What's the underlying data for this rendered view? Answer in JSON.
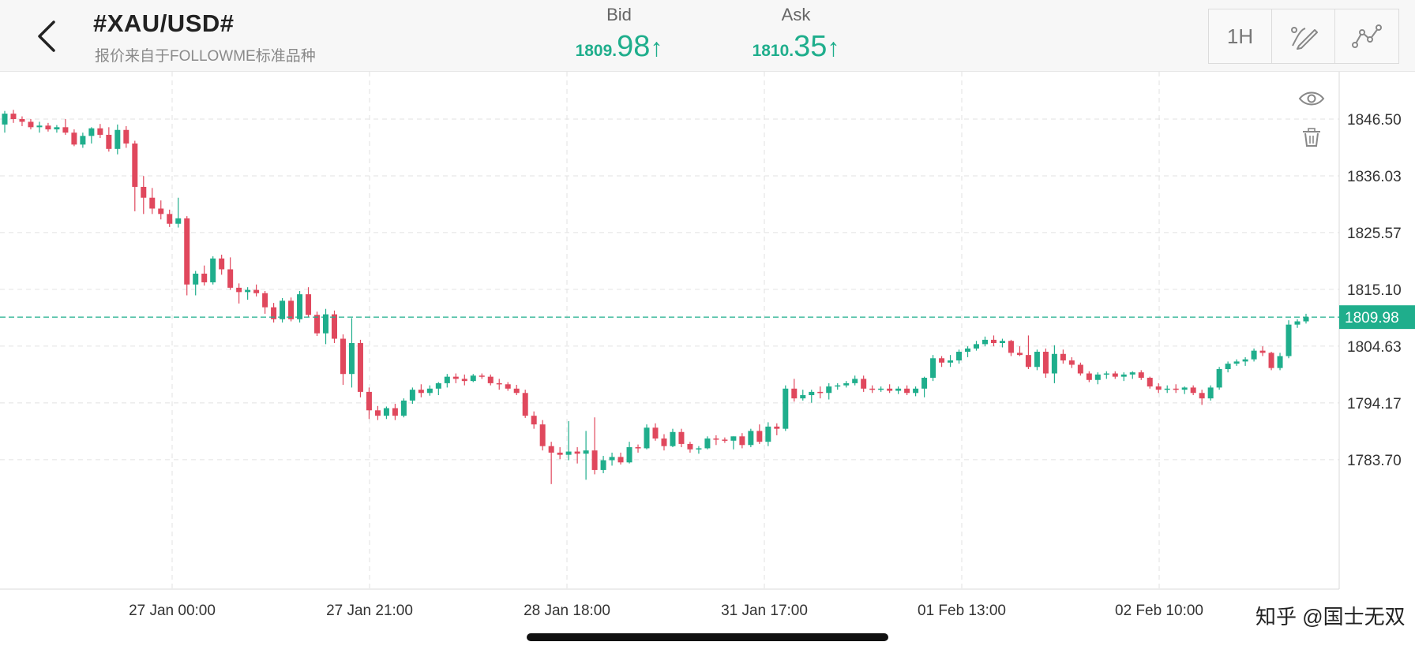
{
  "header": {
    "title": "#XAU/USD#",
    "subtitle": "报价来自于FOLLOWME标准品种",
    "bid": {
      "label": "Bid",
      "big": "1809.",
      "small": "98",
      "arrow": "↑"
    },
    "ask": {
      "label": "Ask",
      "big": "1810.",
      "small": "35",
      "arrow": "↑"
    },
    "tools": {
      "timeframe": "1H",
      "draw_icon": "pen-icon",
      "indicator_icon": "line-chart-icon"
    },
    "back_icon": "chevron-left-icon"
  },
  "watermark": "知乎 @国士无双",
  "colors": {
    "up": "#1fae8c",
    "down": "#e0485d",
    "grid": "#e2e2e2",
    "price_line": "#1fae8c",
    "axis_text": "#333333"
  },
  "chart_data": {
    "type": "candlestick",
    "symbol": "#XAU/USD#",
    "timeframe": "1H",
    "y_ticks": [
      1846.5,
      1836.03,
      1825.57,
      1815.1,
      1804.63,
      1794.17,
      1783.7
    ],
    "x_ticks": [
      "27 Jan 00:00",
      "27 Jan 21:00",
      "28 Jan 18:00",
      "31 Jan 17:00",
      "01 Feb 13:00",
      "02 Feb 10:00"
    ],
    "current_price": "1809.98",
    "grid": true,
    "candles": [
      [
        1845.5,
        1848.0,
        1844.0,
        1847.5
      ],
      [
        1847.5,
        1848.2,
        1845.8,
        1846.5
      ],
      [
        1846.5,
        1847.0,
        1845.2,
        1846.0
      ],
      [
        1846.0,
        1846.5,
        1844.6,
        1845.0
      ],
      [
        1845.0,
        1846.0,
        1844.0,
        1845.3
      ],
      [
        1845.3,
        1845.8,
        1844.2,
        1844.6
      ],
      [
        1844.6,
        1845.4,
        1844.0,
        1845.0
      ],
      [
        1845.0,
        1846.5,
        1843.6,
        1844.0
      ],
      [
        1844.0,
        1844.6,
        1841.5,
        1841.8
      ],
      [
        1841.8,
        1844.0,
        1841.2,
        1843.4
      ],
      [
        1843.4,
        1845.0,
        1842.0,
        1844.8
      ],
      [
        1844.8,
        1845.6,
        1843.0,
        1843.6
      ],
      [
        1843.6,
        1845.0,
        1840.5,
        1841.0
      ],
      [
        1841.0,
        1845.5,
        1840.0,
        1844.5
      ],
      [
        1844.5,
        1845.2,
        1841.2,
        1842.0
      ],
      [
        1842.0,
        1842.5,
        1829.5,
        1834.0
      ],
      [
        1834.0,
        1836.0,
        1829.0,
        1832.0
      ],
      [
        1832.0,
        1833.8,
        1829.0,
        1830.0
      ],
      [
        1830.0,
        1831.5,
        1828.0,
        1829.0
      ],
      [
        1829.0,
        1829.8,
        1826.6,
        1827.2
      ],
      [
        1827.2,
        1832.0,
        1826.5,
        1828.2
      ],
      [
        1828.2,
        1828.6,
        1814.0,
        1816.0
      ],
      [
        1816.0,
        1818.5,
        1814.0,
        1818.0
      ],
      [
        1818.0,
        1819.5,
        1815.8,
        1816.4
      ],
      [
        1816.4,
        1821.2,
        1816.0,
        1820.8
      ],
      [
        1820.8,
        1821.5,
        1817.8,
        1818.8
      ],
      [
        1818.8,
        1821.0,
        1815.0,
        1815.4
      ],
      [
        1815.4,
        1816.2,
        1812.5,
        1814.6
      ],
      [
        1814.6,
        1815.5,
        1813.2,
        1815.0
      ],
      [
        1815.0,
        1816.0,
        1813.8,
        1814.4
      ],
      [
        1814.4,
        1814.8,
        1810.6,
        1811.8
      ],
      [
        1811.8,
        1812.6,
        1809.0,
        1809.6
      ],
      [
        1809.6,
        1813.5,
        1809.0,
        1813.0
      ],
      [
        1813.0,
        1813.6,
        1809.2,
        1809.6
      ],
      [
        1809.6,
        1814.8,
        1809.0,
        1814.2
      ],
      [
        1814.2,
        1815.5,
        1810.0,
        1810.4
      ],
      [
        1810.4,
        1811.0,
        1806.5,
        1807.0
      ],
      [
        1807.0,
        1811.5,
        1805.0,
        1810.5
      ],
      [
        1810.5,
        1811.2,
        1805.2,
        1806.0
      ],
      [
        1806.0,
        1806.8,
        1797.5,
        1799.5
      ],
      [
        1799.5,
        1809.8,
        1797.0,
        1805.2
      ],
      [
        1805.2,
        1805.8,
        1795.2,
        1796.2
      ],
      [
        1796.2,
        1797.0,
        1791.2,
        1792.8
      ],
      [
        1792.8,
        1793.6,
        1791.0,
        1791.8
      ],
      [
        1791.8,
        1793.5,
        1791.2,
        1793.2
      ],
      [
        1793.2,
        1794.0,
        1791.0,
        1791.8
      ],
      [
        1791.8,
        1795.0,
        1791.5,
        1794.6
      ],
      [
        1794.6,
        1797.0,
        1794.0,
        1796.6
      ],
      [
        1796.6,
        1797.6,
        1795.2,
        1796.0
      ],
      [
        1796.0,
        1797.4,
        1795.5,
        1796.8
      ],
      [
        1796.8,
        1798.0,
        1795.6,
        1797.8
      ],
      [
        1797.8,
        1799.5,
        1797.0,
        1799.0
      ],
      [
        1799.0,
        1799.6,
        1797.8,
        1798.6
      ],
      [
        1798.6,
        1799.4,
        1797.4,
        1798.2
      ],
      [
        1798.2,
        1799.5,
        1798.0,
        1799.2
      ],
      [
        1799.2,
        1799.6,
        1798.6,
        1799.0
      ],
      [
        1799.0,
        1799.4,
        1797.4,
        1797.8
      ],
      [
        1797.8,
        1798.6,
        1796.6,
        1797.6
      ],
      [
        1797.6,
        1798.0,
        1796.4,
        1796.8
      ],
      [
        1796.8,
        1797.5,
        1795.6,
        1796.0
      ],
      [
        1796.0,
        1796.6,
        1791.4,
        1791.8
      ],
      [
        1791.8,
        1792.6,
        1789.4,
        1790.2
      ],
      [
        1790.2,
        1791.0,
        1785.4,
        1786.2
      ],
      [
        1786.2,
        1787.0,
        1779.2,
        1785.0
      ],
      [
        1785.0,
        1786.0,
        1783.8,
        1784.6
      ],
      [
        1784.6,
        1790.8,
        1783.6,
        1785.2
      ],
      [
        1785.2,
        1786.0,
        1783.0,
        1784.8
      ],
      [
        1784.8,
        1789.0,
        1780.0,
        1785.4
      ],
      [
        1785.4,
        1791.5,
        1781.0,
        1781.8
      ],
      [
        1781.8,
        1784.4,
        1781.2,
        1783.6
      ],
      [
        1783.6,
        1785.0,
        1782.6,
        1784.2
      ],
      [
        1784.2,
        1785.0,
        1782.8,
        1783.2
      ],
      [
        1783.2,
        1787.0,
        1783.0,
        1786.0
      ],
      [
        1786.0,
        1786.5,
        1785.0,
        1785.8
      ],
      [
        1785.8,
        1790.2,
        1785.6,
        1789.6
      ],
      [
        1789.6,
        1790.4,
        1787.2,
        1787.6
      ],
      [
        1787.6,
        1788.4,
        1785.4,
        1786.2
      ],
      [
        1786.2,
        1789.4,
        1786.0,
        1788.8
      ],
      [
        1788.8,
        1789.4,
        1786.0,
        1786.6
      ],
      [
        1786.6,
        1787.0,
        1785.0,
        1785.6
      ],
      [
        1785.6,
        1786.2,
        1784.8,
        1785.8
      ],
      [
        1785.8,
        1788.0,
        1785.6,
        1787.6
      ],
      [
        1787.6,
        1788.2,
        1786.4,
        1787.4
      ],
      [
        1787.4,
        1787.8,
        1786.8,
        1787.2
      ],
      [
        1787.2,
        1788.0,
        1785.6,
        1788.0
      ],
      [
        1788.0,
        1788.6,
        1785.8,
        1786.4
      ],
      [
        1786.4,
        1789.4,
        1786.0,
        1789.0
      ],
      [
        1789.0,
        1790.2,
        1786.6,
        1787.0
      ],
      [
        1787.0,
        1790.6,
        1786.2,
        1789.8
      ],
      [
        1789.8,
        1790.4,
        1788.2,
        1789.4
      ],
      [
        1789.4,
        1797.4,
        1789.0,
        1796.8
      ],
      [
        1796.8,
        1798.6,
        1794.4,
        1795.0
      ],
      [
        1795.0,
        1796.6,
        1794.6,
        1795.6
      ],
      [
        1795.6,
        1796.6,
        1794.2,
        1796.2
      ],
      [
        1796.2,
        1797.2,
        1795.0,
        1796.0
      ],
      [
        1796.0,
        1797.8,
        1794.8,
        1797.2
      ],
      [
        1797.2,
        1797.8,
        1796.6,
        1797.4
      ],
      [
        1797.4,
        1798.2,
        1797.0,
        1797.8
      ],
      [
        1797.8,
        1799.2,
        1797.4,
        1798.6
      ],
      [
        1798.6,
        1799.2,
        1796.2,
        1796.8
      ],
      [
        1796.8,
        1797.4,
        1796.0,
        1796.6
      ],
      [
        1796.6,
        1797.2,
        1796.2,
        1796.8
      ],
      [
        1796.8,
        1797.6,
        1796.0,
        1796.4
      ],
      [
        1796.4,
        1797.2,
        1795.8,
        1796.8
      ],
      [
        1796.8,
        1797.4,
        1795.6,
        1796.0
      ],
      [
        1796.0,
        1797.2,
        1795.4,
        1796.8
      ],
      [
        1796.8,
        1799.0,
        1795.2,
        1798.8
      ],
      [
        1798.8,
        1803.0,
        1798.2,
        1802.4
      ],
      [
        1802.4,
        1802.8,
        1800.8,
        1801.6
      ],
      [
        1801.6,
        1803.0,
        1800.8,
        1802.0
      ],
      [
        1802.0,
        1804.0,
        1801.4,
        1803.6
      ],
      [
        1803.6,
        1804.6,
        1802.6,
        1804.2
      ],
      [
        1804.2,
        1805.6,
        1803.8,
        1805.0
      ],
      [
        1805.0,
        1806.4,
        1804.6,
        1805.8
      ],
      [
        1805.8,
        1806.6,
        1804.6,
        1805.2
      ],
      [
        1805.2,
        1806.0,
        1804.4,
        1805.6
      ],
      [
        1805.6,
        1805.8,
        1802.8,
        1803.4
      ],
      [
        1803.4,
        1804.6,
        1802.8,
        1803.0
      ],
      [
        1803.0,
        1806.6,
        1800.4,
        1800.8
      ],
      [
        1800.8,
        1804.0,
        1800.2,
        1803.6
      ],
      [
        1803.6,
        1804.2,
        1798.8,
        1799.6
      ],
      [
        1799.6,
        1804.8,
        1797.8,
        1803.2
      ],
      [
        1803.2,
        1804.0,
        1801.4,
        1802.0
      ],
      [
        1802.0,
        1802.6,
        1800.6,
        1801.2
      ],
      [
        1801.2,
        1801.6,
        1799.2,
        1799.6
      ],
      [
        1799.6,
        1800.0,
        1798.0,
        1798.4
      ],
      [
        1798.4,
        1799.8,
        1797.6,
        1799.4
      ],
      [
        1799.4,
        1800.0,
        1798.6,
        1799.6
      ],
      [
        1799.6,
        1800.0,
        1798.6,
        1799.0
      ],
      [
        1799.0,
        1799.8,
        1798.2,
        1799.4
      ],
      [
        1799.4,
        1800.0,
        1798.6,
        1799.8
      ],
      [
        1799.8,
        1800.2,
        1798.4,
        1798.8
      ],
      [
        1798.8,
        1799.0,
        1796.8,
        1797.2
      ],
      [
        1797.2,
        1797.8,
        1796.0,
        1796.6
      ],
      [
        1796.6,
        1797.4,
        1796.0,
        1796.8
      ],
      [
        1796.8,
        1797.6,
        1796.0,
        1796.6
      ],
      [
        1796.6,
        1797.2,
        1795.8,
        1797.0
      ],
      [
        1797.0,
        1797.4,
        1795.6,
        1796.0
      ],
      [
        1796.0,
        1796.6,
        1793.8,
        1795.0
      ],
      [
        1795.0,
        1797.4,
        1794.6,
        1797.0
      ],
      [
        1797.0,
        1800.8,
        1796.6,
        1800.4
      ],
      [
        1800.4,
        1801.8,
        1799.8,
        1801.4
      ],
      [
        1801.4,
        1802.2,
        1801.0,
        1801.8
      ],
      [
        1801.8,
        1802.6,
        1801.0,
        1802.2
      ],
      [
        1802.2,
        1804.2,
        1801.8,
        1803.8
      ],
      [
        1803.8,
        1804.6,
        1802.8,
        1803.4
      ],
      [
        1803.4,
        1803.6,
        1800.2,
        1800.6
      ],
      [
        1800.6,
        1803.4,
        1800.2,
        1802.8
      ],
      [
        1802.8,
        1809.4,
        1802.4,
        1808.6
      ],
      [
        1808.6,
        1809.6,
        1808.0,
        1809.2
      ],
      [
        1809.2,
        1810.6,
        1808.8,
        1809.98
      ]
    ]
  }
}
